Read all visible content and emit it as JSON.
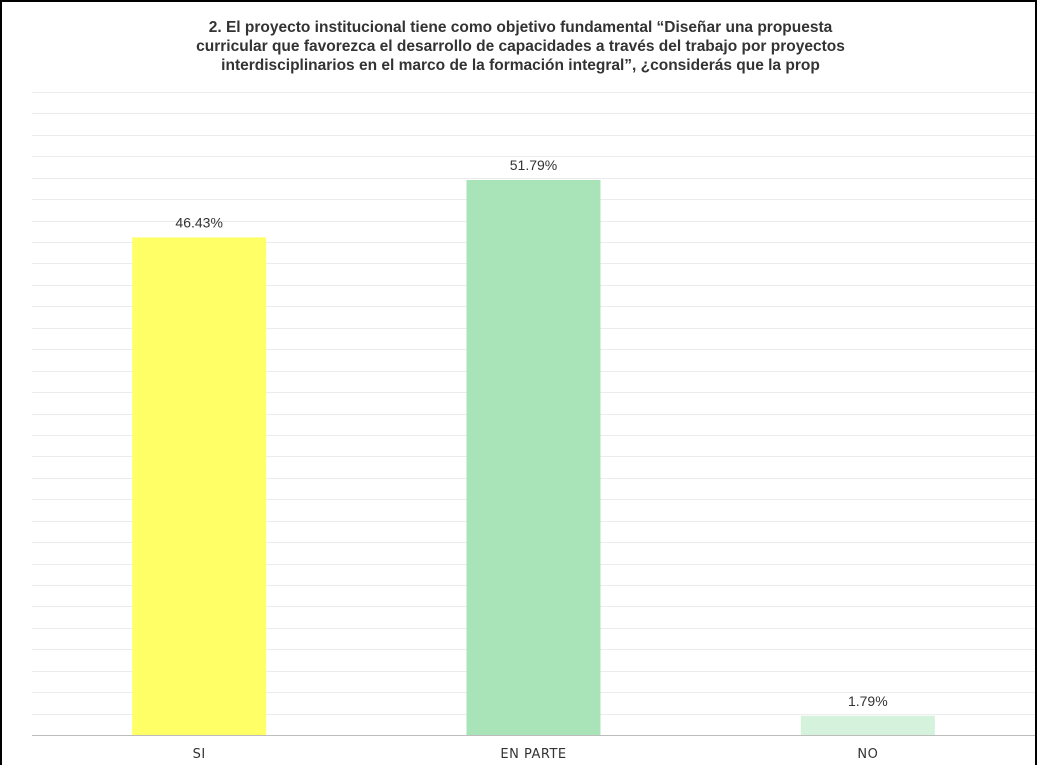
{
  "chart_data": {
    "type": "bar",
    "title_lines": [
      "2. El proyecto institucional tiene como objetivo fundamental “Diseñar una propuesta",
      "curricular que favorezca el desarrollo de capacidades a través del trabajo por proyectos",
      "interdisciplinarios  en el marco de la formación integral”, ¿considerás que la prop"
    ],
    "categories": [
      "SI",
      "EN PARTE",
      "NO"
    ],
    "values": [
      46.43,
      51.79,
      1.79
    ],
    "data_labels": [
      "46.43%",
      "51.79%",
      "1.79%"
    ],
    "colors": [
      "#ffff66",
      "#a8e4b8",
      "#d4f2dc"
    ],
    "ylim": [
      0,
      60
    ],
    "grid": true,
    "xlabel": "",
    "ylabel": ""
  }
}
